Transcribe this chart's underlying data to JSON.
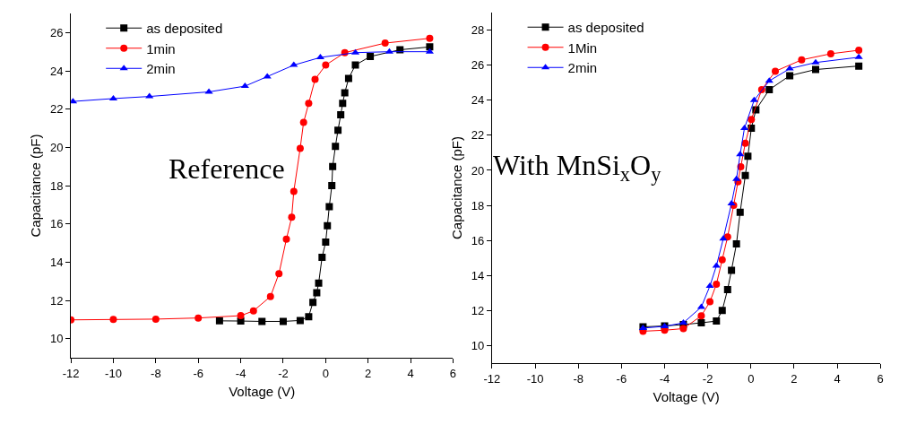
{
  "chart_data": [
    {
      "type": "line",
      "xlabel": "Voltage (V)",
      "ylabel": "Capacitance (pF)",
      "xlim": [
        -12,
        6
      ],
      "xticks": [
        -12,
        -10,
        -8,
        -6,
        -4,
        -2,
        0,
        2,
        4,
        6
      ],
      "ylim": [
        9,
        27
      ],
      "yticks": [
        10,
        12,
        14,
        16,
        18,
        20,
        22,
        24,
        26
      ],
      "legend": "top left",
      "annotations": [
        "Reference"
      ],
      "series": [
        {
          "name": "as deposited",
          "color": "#000000",
          "marker": "square",
          "x": [
            -5,
            -4,
            -3,
            -2,
            -1.2,
            -0.8,
            -0.6,
            -0.42,
            -0.33,
            -0.17,
            0,
            0.08,
            0.17,
            0.29,
            0.33,
            0.46,
            0.58,
            0.71,
            0.8,
            0.9,
            1.08,
            1.4,
            2.1,
            3.5,
            4.9
          ],
          "values": [
            10.93,
            10.92,
            10.9,
            10.9,
            10.95,
            11.15,
            11.9,
            12.4,
            12.9,
            14.25,
            15.05,
            15.9,
            16.9,
            18.0,
            19.0,
            20.05,
            20.9,
            21.7,
            22.3,
            22.85,
            23.6,
            24.3,
            24.75,
            25.1,
            25.25
          ]
        },
        {
          "name": "1min",
          "color": "#ff0000",
          "marker": "circle",
          "x": [
            -12,
            -10,
            -8,
            -6,
            -4,
            -3.4,
            -2.6,
            -2.2,
            -1.85,
            -1.6,
            -1.5,
            -1.2,
            -1.04,
            -0.8,
            -0.5,
            0,
            0.9,
            2.8,
            4.9
          ],
          "values": [
            10.98,
            11.0,
            11.02,
            11.08,
            11.2,
            11.45,
            12.2,
            13.4,
            15.2,
            16.35,
            17.7,
            19.95,
            21.3,
            22.3,
            23.55,
            24.3,
            24.95,
            25.45,
            25.7
          ]
        },
        {
          "name": "2min",
          "color": "#0000ff",
          "marker": "triangle",
          "x": [
            -11.9,
            -10,
            -8.3,
            -5.5,
            -3.8,
            -2.75,
            -1.5,
            -0.25,
            1.4,
            3,
            4.9
          ],
          "values": [
            22.4,
            22.55,
            22.66,
            22.9,
            23.2,
            23.7,
            24.3,
            24.7,
            24.95,
            25.0,
            25.0
          ]
        }
      ]
    },
    {
      "type": "line",
      "xlabel": "Voltage (V)",
      "ylabel": "Capacitance (pF)",
      "xlim": [
        -12,
        6
      ],
      "xticks": [
        -12,
        -10,
        -8,
        -6,
        -4,
        -2,
        0,
        2,
        4,
        6
      ],
      "ylim": [
        9,
        29
      ],
      "yticks": [
        10,
        12,
        14,
        16,
        18,
        20,
        22,
        24,
        26,
        28
      ],
      "legend": "top left",
      "annotations": [
        "With MnSi$_{x}$O$_{y}$"
      ],
      "series": [
        {
          "name": "as deposited",
          "color": "#000000",
          "marker": "square",
          "x": [
            -5,
            -4,
            -3.13,
            -2.3,
            -1.6,
            -1.33,
            -1.08,
            -0.9,
            -0.67,
            -0.5,
            -0.26,
            -0.14,
            0.02,
            0.23,
            0.85,
            1.8,
            3.0,
            5.0
          ],
          "values": [
            11.07,
            11.12,
            11.2,
            11.3,
            11.4,
            12.0,
            13.2,
            14.3,
            15.8,
            17.6,
            19.7,
            20.8,
            22.4,
            23.45,
            24.6,
            25.4,
            25.75,
            25.95
          ]
        },
        {
          "name": "1Min",
          "color": "#ff0000",
          "marker": "circle",
          "x": [
            -5,
            -4,
            -3.13,
            -2.3,
            -1.9,
            -1.6,
            -1.33,
            -1.08,
            -0.8,
            -0.6,
            -0.47,
            -0.26,
            0.02,
            0.5,
            1.13,
            2.35,
            3.7,
            5.0
          ],
          "values": [
            10.82,
            10.88,
            10.97,
            11.7,
            12.5,
            13.5,
            14.9,
            16.2,
            18.0,
            19.35,
            20.2,
            21.55,
            22.9,
            24.6,
            25.65,
            26.3,
            26.65,
            26.85
          ]
        },
        {
          "name": "2min",
          "color": "#0000ff",
          "marker": "triangle",
          "x": [
            -5,
            -4,
            -3.13,
            -2.3,
            -1.9,
            -1.6,
            -1.28,
            -0.9,
            -0.67,
            -0.5,
            -0.3,
            0.15,
            0.85,
            1.8,
            3.0,
            5.0
          ],
          "values": [
            11.0,
            11.1,
            11.3,
            12.2,
            13.4,
            14.55,
            16.1,
            18.1,
            19.5,
            20.9,
            22.4,
            24.0,
            25.1,
            25.8,
            26.15,
            26.45
          ]
        }
      ]
    }
  ]
}
